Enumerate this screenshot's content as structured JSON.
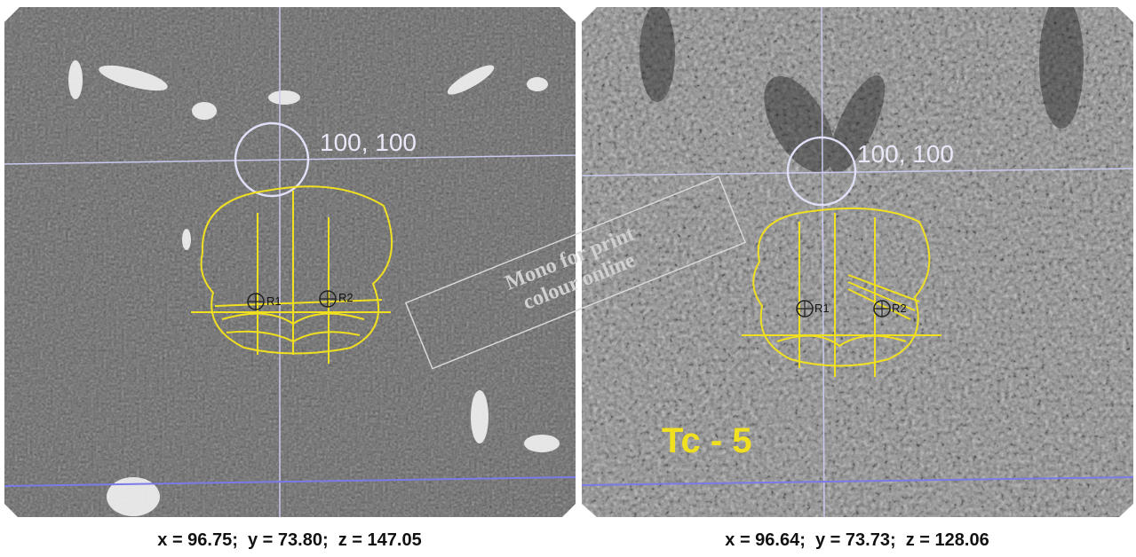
{
  "panels": [
    {
      "label": "100, 100",
      "markers": [
        "R1",
        "R2"
      ],
      "caption": "x = 96.75;  y = 73.80;  z = 147.05"
    },
    {
      "label": "100, 100",
      "markers": [
        "R1",
        "R2"
      ],
      "annotation": "Tc - 5",
      "caption": "x = 96.64;  y = 73.73;  z = 128.06"
    }
  ],
  "watermark": [
    "Mono for print",
    "colour online"
  ]
}
